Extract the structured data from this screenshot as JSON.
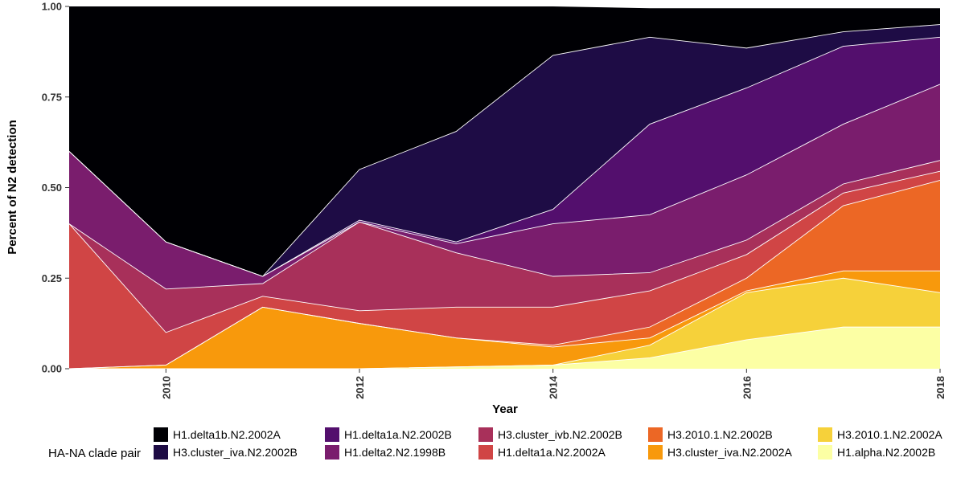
{
  "chart_data": {
    "type": "area",
    "stacked": true,
    "xlabel": "Year",
    "ylabel": "Percent of N2 detection",
    "xlim": [
      2009,
      2018
    ],
    "ylim": [
      0,
      1
    ],
    "x": [
      2009,
      2010,
      2011,
      2012,
      2013,
      2014,
      2015,
      2016,
      2017,
      2018
    ],
    "x_ticks": [
      2010,
      2012,
      2014,
      2016,
      2018
    ],
    "y_ticks": [
      {
        "value": 0,
        "label": "0.00"
      },
      {
        "value": 0.25,
        "label": "0.25"
      },
      {
        "value": 0.5,
        "label": "0.50"
      },
      {
        "value": 0.75,
        "label": "0.75"
      },
      {
        "value": 1,
        "label": "1.00"
      }
    ],
    "grid": false,
    "legend": {
      "title": "HA-NA clade pair",
      "placement": "bottom",
      "columns": 5,
      "rows": 2
    },
    "series": [
      {
        "name": "H1.alpha.N2.2002B",
        "color": "#fcffa4",
        "values": [
          0,
          0,
          0,
          0,
          0.005,
          0.01,
          0.03,
          0.08,
          0.115,
          0.115
        ]
      },
      {
        "name": "H3.2010.1.N2.2002A",
        "color": "#f6d13a",
        "values": [
          0,
          0,
          0,
          0,
          0,
          0,
          0.035,
          0.13,
          0.135,
          0.095
        ]
      },
      {
        "name": "H3.cluster_iva.N2.2002A",
        "color": "#f8990c",
        "values": [
          0,
          0.01,
          0.17,
          0.125,
          0.08,
          0.05,
          0.02,
          0.005,
          0.02,
          0.06
        ]
      },
      {
        "name": "H3.2010.1.N2.2002B",
        "color": "#ec6725",
        "values": [
          0,
          0,
          0,
          0,
          0,
          0.005,
          0.03,
          0.035,
          0.18,
          0.25
        ]
      },
      {
        "name": "H1.delta1a.N2.2002A",
        "color": "#d04545",
        "values": [
          0.4,
          0.09,
          0.03,
          0.035,
          0.085,
          0.105,
          0.1,
          0.065,
          0.035,
          0.025
        ]
      },
      {
        "name": "H3.cluster_ivb.N2.2002B",
        "color": "#a8305a",
        "values": [
          0,
          0.12,
          0.035,
          0.245,
          0.15,
          0.085,
          0.05,
          0.04,
          0.025,
          0.03
        ]
      },
      {
        "name": "H1.delta2.N2.1998B",
        "color": "#7a1d6d",
        "values": [
          0.2,
          0.13,
          0.02,
          0,
          0.025,
          0.145,
          0.16,
          0.18,
          0.165,
          0.21
        ]
      },
      {
        "name": "H1.delta1a.N2.2002B",
        "color": "#530f6d",
        "values": [
          0,
          0,
          0,
          0.005,
          0.005,
          0.04,
          0.25,
          0.24,
          0.215,
          0.13
        ]
      },
      {
        "name": "H3.cluster_iva.N2.2002B",
        "color": "#1e0c45",
        "values": [
          0,
          0,
          0,
          0.14,
          0.305,
          0.425,
          0.24,
          0.11,
          0.04,
          0.035
        ]
      },
      {
        "name": "H1.delta1b.N2.2002A",
        "color": "#000004",
        "values": [
          0.4,
          0.65,
          0.745,
          0.45,
          0.345,
          0.135,
          0.08,
          0.11,
          0.065,
          0.045
        ]
      }
    ]
  }
}
